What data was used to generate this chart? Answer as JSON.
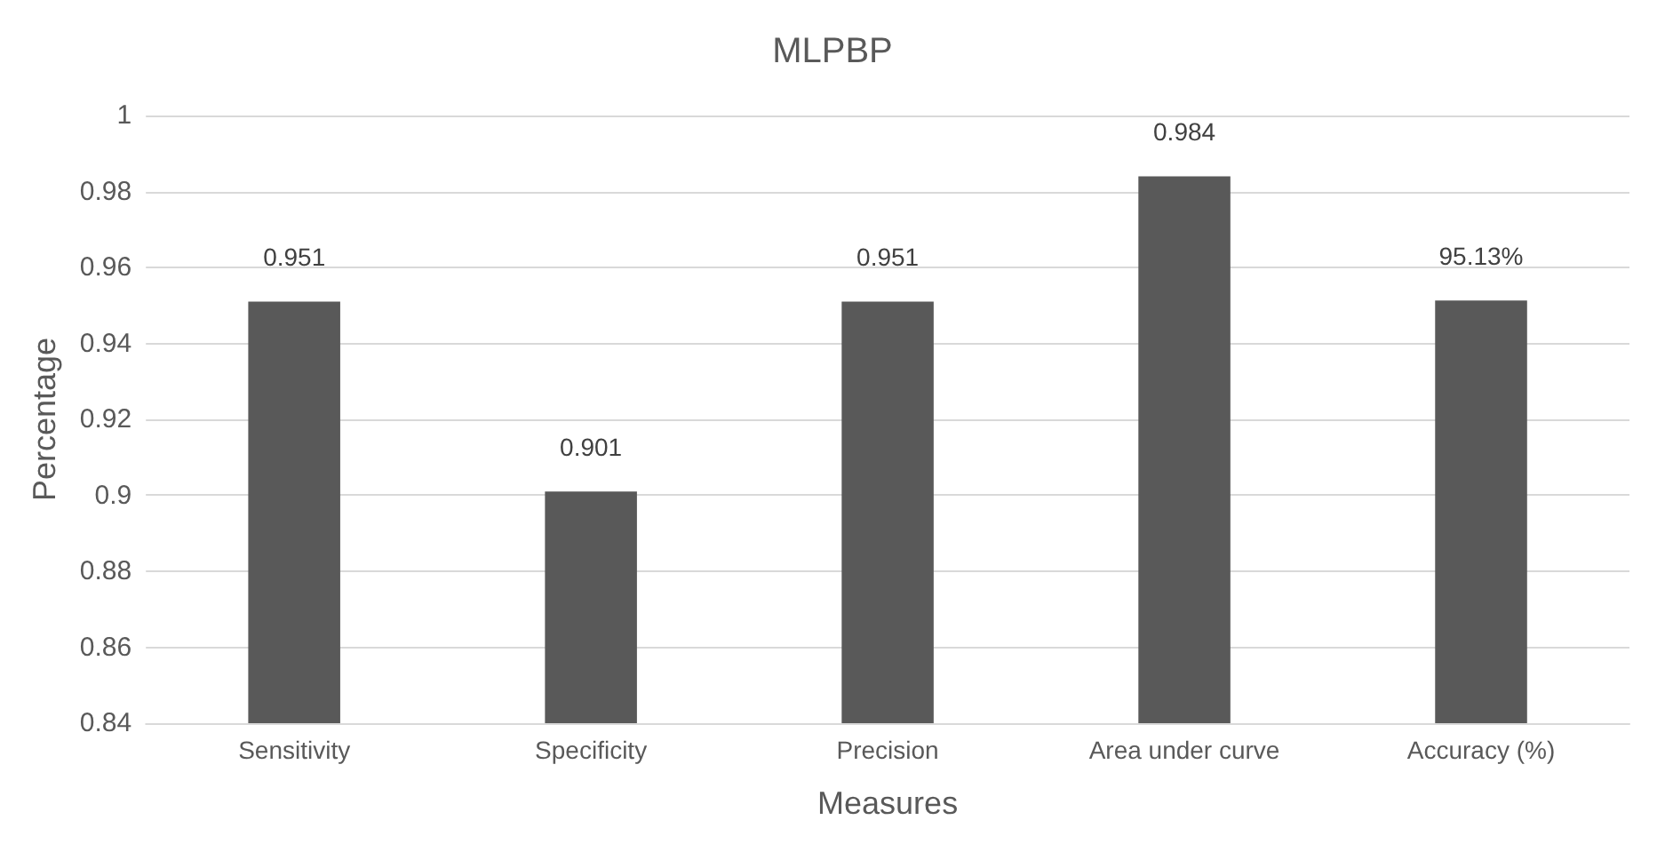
{
  "chart_data": {
    "type": "bar",
    "title": "MLPBP",
    "xlabel": "Measures",
    "ylabel": "Percentage",
    "categories": [
      "Sensitivity",
      "Specificity",
      "Precision",
      "Area under curve",
      "Accuracy (%)"
    ],
    "values": [
      0.951,
      0.901,
      0.951,
      0.984,
      0.9513
    ],
    "value_labels": [
      "0.951",
      "0.901",
      "0.951",
      "0.984",
      "95.13%"
    ],
    "color": "#595959",
    "ylim": [
      0.84,
      1
    ],
    "yticks": [
      0.84,
      0.86,
      0.88,
      0.9,
      0.92,
      0.94,
      0.96,
      0.98,
      1
    ],
    "grid": "y"
  }
}
